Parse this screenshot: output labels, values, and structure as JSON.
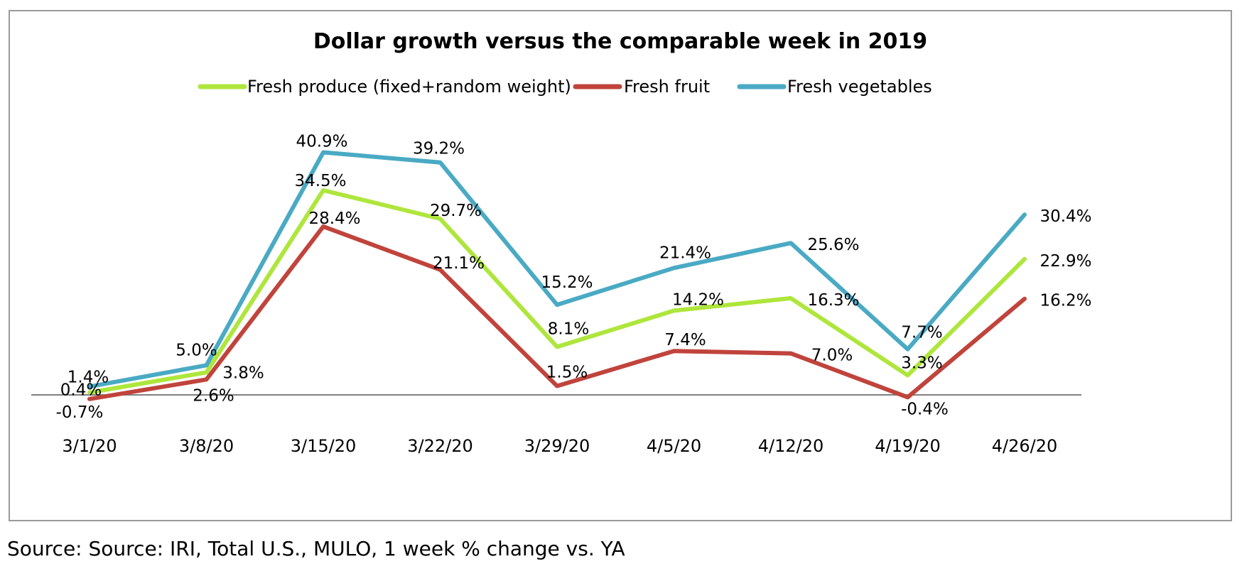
{
  "chart_data": {
    "type": "line",
    "title": "Dollar growth versus the comparable week in 2019",
    "xlabel": "",
    "ylabel": "",
    "categories": [
      "3/1/20",
      "3/8/20",
      "3/15/20",
      "3/22/20",
      "3/29/20",
      "4/5/20",
      "4/12/20",
      "4/19/20",
      "4/26/20"
    ],
    "series": [
      {
        "name": "Fresh produce (fixed+random weight)",
        "color": "#aee63c",
        "values": [
          0.4,
          3.8,
          34.5,
          29.7,
          8.1,
          14.2,
          16.3,
          3.3,
          22.9
        ],
        "labels": [
          "0.4%",
          "3.8%",
          "34.5%",
          "29.7%",
          "8.1%",
          "14.2%",
          "16.3%",
          "3.3%",
          "22.9%"
        ]
      },
      {
        "name": "Fresh fruit",
        "color": "#c0443c",
        "values": [
          -0.7,
          2.6,
          28.4,
          21.1,
          1.5,
          7.4,
          7.0,
          -0.4,
          16.2
        ],
        "labels": [
          "-0.7%",
          "2.6%",
          "28.4%",
          "21.1%",
          "1.5%",
          "7.4%",
          "7.0%",
          "-0.4%",
          "16.2%"
        ]
      },
      {
        "name": "Fresh vegetables",
        "color": "#4aaac4",
        "values": [
          1.4,
          5.0,
          40.9,
          39.2,
          15.2,
          21.4,
          25.6,
          7.7,
          30.4
        ],
        "labels": [
          "1.4%",
          "5.0%",
          "40.9%",
          "39.2%",
          "15.2%",
          "21.4%",
          "25.6%",
          "7.7%",
          "30.4%"
        ]
      }
    ],
    "ylim": [
      -5,
      50
    ],
    "grid": false,
    "legend": "top",
    "axis_color": "#808080"
  },
  "source": "Source: Source: IRI, Total U.S., MULO, 1 week % change vs. YA"
}
